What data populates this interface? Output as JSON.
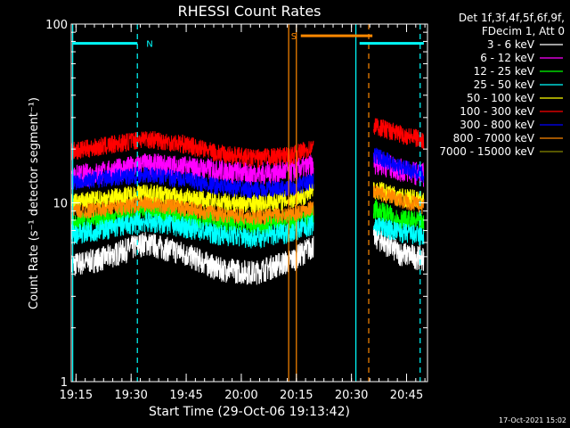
{
  "chart_data": {
    "type": "line",
    "title": "RHESSI Count Rates",
    "xlabel": "Start Time (29-Oct-06 19:13:42)",
    "ylabel": "Count Rate (s⁻¹ detector segment⁻¹)",
    "y_scale": "log",
    "ylim": [
      1,
      100
    ],
    "y_ticks": [
      "1",
      "10",
      "100"
    ],
    "x_ticks": [
      "19:15",
      "19:30",
      "19:45",
      "20:00",
      "20:15",
      "20:30",
      "20:45"
    ],
    "x_range_minutes_from_19_13_42": [
      0,
      97
    ],
    "legend_header": [
      "Det 1f,3f,4f,5f,6f,9f,",
      "FDecim 1, Att 0"
    ],
    "legend_placement": "right",
    "series": [
      {
        "name": "3 - 6 keV",
        "color": "#ffffff",
        "x": [
          0,
          10,
          20,
          30,
          40,
          50,
          60,
          66,
          83,
          89,
          96
        ],
        "y": [
          4.5,
          5.0,
          6.0,
          5.3,
          4.3,
          4.1,
          4.8,
          5.8,
          6.5,
          5.3,
          4.9
        ]
      },
      {
        "name": "6 - 12 keV",
        "color": "#ff00ff",
        "x": [
          0,
          10,
          20,
          30,
          40,
          50,
          60,
          66,
          83,
          89,
          96
        ],
        "y": [
          14.0,
          15.0,
          16.5,
          16.0,
          15.3,
          14.6,
          15.2,
          16.3,
          17.0,
          15.5,
          14.5
        ]
      },
      {
        "name": "12 - 25 keV",
        "color": "#00ff00",
        "x": [
          0,
          10,
          20,
          30,
          40,
          50,
          60,
          66,
          83,
          89,
          96
        ],
        "y": [
          7.6,
          8.3,
          9.1,
          8.6,
          7.9,
          7.5,
          8.0,
          8.6,
          9.2,
          8.1,
          7.7
        ]
      },
      {
        "name": "25 - 50 keV",
        "color": "#00ffff",
        "x": [
          0,
          10,
          20,
          30,
          40,
          50,
          60,
          66,
          83,
          89,
          96
        ],
        "y": [
          6.7,
          7.2,
          7.9,
          7.4,
          6.7,
          6.4,
          6.9,
          7.6,
          7.5,
          6.9,
          6.5
        ]
      },
      {
        "name": "50 - 100 keV",
        "color": "#ffff00",
        "x": [
          0,
          10,
          20,
          30,
          40,
          50,
          60,
          66,
          83,
          89,
          96
        ],
        "y": [
          10.0,
          10.6,
          11.4,
          10.8,
          10.1,
          9.9,
          10.5,
          11.6,
          12.0,
          10.9,
          10.3
        ]
      },
      {
        "name": "100 - 300 keV",
        "color": "#ff0000",
        "x": [
          0,
          10,
          20,
          30,
          40,
          50,
          60,
          66,
          83,
          89,
          96
        ],
        "y": [
          19.5,
          21.0,
          23.0,
          21.5,
          19.0,
          17.8,
          18.5,
          20.5,
          27.0,
          24.5,
          22.5
        ]
      },
      {
        "name": "300 - 800 keV",
        "color": "#0000ff",
        "x": [
          0,
          10,
          20,
          30,
          40,
          50,
          60,
          66,
          83,
          89,
          96
        ],
        "y": [
          13.2,
          13.8,
          14.5,
          13.6,
          12.4,
          11.8,
          12.2,
          13.3,
          18.5,
          16.0,
          14.5
        ]
      },
      {
        "name": "800 - 7000 keV",
        "color": "#ff8800",
        "x": [
          0,
          10,
          20,
          30,
          40,
          50,
          60,
          66,
          83,
          89,
          96
        ],
        "y": [
          8.9,
          9.3,
          9.9,
          9.4,
          8.7,
          8.3,
          8.7,
          9.5,
          11.5,
          10.5,
          9.6
        ]
      },
      {
        "name": "7000 - 15000 keV",
        "color": "#888800",
        "x": [],
        "y": []
      }
    ],
    "annotations": [
      {
        "text": "N",
        "color": "#00ffff",
        "x_start": 0.5,
        "x_end": 18,
        "y": 78
      },
      {
        "text": "S",
        "color": "#ff8800",
        "x_start": 62.5,
        "x_end": 82,
        "y": 86
      },
      {
        "text": "",
        "color": "#00ffff",
        "x_start": 78.5,
        "x_end": 96,
        "y": 78
      }
    ],
    "gap_minutes": [
      66,
      82.3
    ],
    "vlines": [
      {
        "x": 0.4,
        "color": "#00ffff",
        "style": "solid"
      },
      {
        "x": 18,
        "color": "#00ffff",
        "style": "dashed"
      },
      {
        "x": 59.2,
        "color": "#ff8800",
        "style": "solid"
      },
      {
        "x": 61.3,
        "color": "#ff8800",
        "style": "solid"
      },
      {
        "x": 77.5,
        "color": "#00ffff",
        "style": "solid"
      },
      {
        "x": 81,
        "color": "#ff8800",
        "style": "dashed"
      },
      {
        "x": 95,
        "color": "#00ffff",
        "style": "dashed"
      }
    ],
    "grid": false
  },
  "footer": {
    "timestamp": "17-Oct-2021 15:02"
  }
}
